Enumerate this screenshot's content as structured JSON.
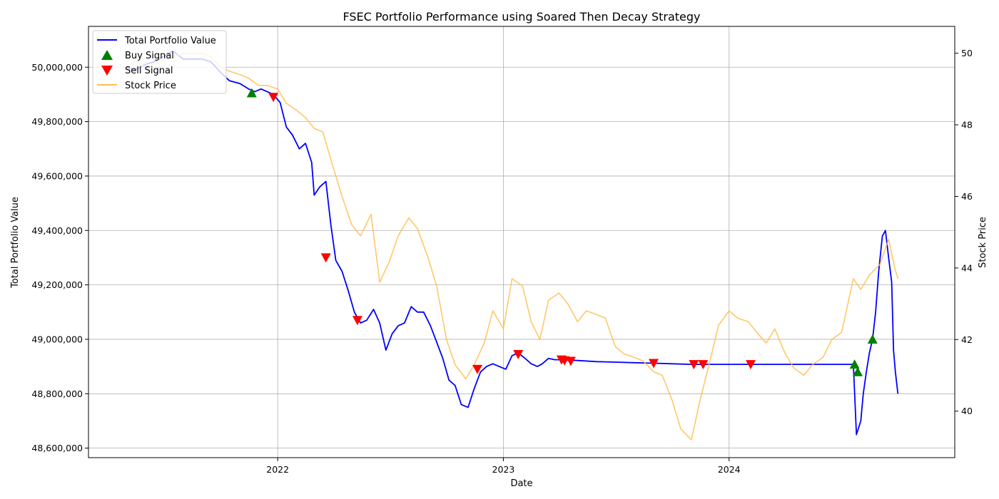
{
  "chart_data": {
    "type": "line",
    "title": "FSEC Portfolio Performance using Soared Then Decay Strategy",
    "xlabel": "Date",
    "ylabel_left": "Total Portfolio Value",
    "ylabel_right": "Stock Price",
    "x_ticks": [
      {
        "date": "2022-01-01",
        "label": "2022"
      },
      {
        "date": "2023-01-01",
        "label": "2023"
      },
      {
        "date": "2024-01-01",
        "label": "2024"
      }
    ],
    "xlim": [
      "2021-03-01",
      "2024-12-31"
    ],
    "y_left_ticks": [
      {
        "value": 48600000,
        "label": "48,600,000"
      },
      {
        "value": 48800000,
        "label": "48,800,000"
      },
      {
        "value": 49000000,
        "label": "49,000,000"
      },
      {
        "value": 49200000,
        "label": "49,200,000"
      },
      {
        "value": 49400000,
        "label": "49,400,000"
      },
      {
        "value": 49600000,
        "label": "49,600,000"
      },
      {
        "value": 49800000,
        "label": "49,800,000"
      },
      {
        "value": 50000000,
        "label": "50,000,000"
      }
    ],
    "ylim_left": [
      48565000,
      50150000
    ],
    "y_right_ticks": [
      {
        "value": 40,
        "label": "40"
      },
      {
        "value": 42,
        "label": "42"
      },
      {
        "value": 44,
        "label": "44"
      },
      {
        "value": 46,
        "label": "46"
      },
      {
        "value": 48,
        "label": "48"
      },
      {
        "value": 50,
        "label": "50"
      }
    ],
    "ylim_right": [
      38.7,
      50.75
    ],
    "grid": true,
    "legend_position": "top-left",
    "series": [
      {
        "name": "Total Portfolio Value",
        "axis": "left",
        "color": "#0000ff",
        "points": [
          [
            "2021-05-01",
            50000000
          ],
          [
            "2021-05-15",
            49990000
          ],
          [
            "2021-06-01",
            50010000
          ],
          [
            "2021-06-15",
            50020000
          ],
          [
            "2021-07-01",
            50040000
          ],
          [
            "2021-07-15",
            50060000
          ],
          [
            "2021-08-01",
            50030000
          ],
          [
            "2021-08-15",
            50030000
          ],
          [
            "2021-09-01",
            50030000
          ],
          [
            "2021-09-15",
            50020000
          ],
          [
            "2021-10-01",
            49980000
          ],
          [
            "2021-10-15",
            49950000
          ],
          [
            "2021-11-01",
            49940000
          ],
          [
            "2021-11-15",
            49920000
          ],
          [
            "2021-11-25",
            49910000
          ],
          [
            "2021-12-05",
            49920000
          ],
          [
            "2021-12-15",
            49910000
          ],
          [
            "2021-12-25",
            49900000
          ],
          [
            "2022-01-05",
            49870000
          ],
          [
            "2022-01-15",
            49780000
          ],
          [
            "2022-01-25",
            49750000
          ],
          [
            "2022-02-05",
            49700000
          ],
          [
            "2022-02-15",
            49720000
          ],
          [
            "2022-02-25",
            49650000
          ],
          [
            "2022-03-01",
            49530000
          ],
          [
            "2022-03-10",
            49560000
          ],
          [
            "2022-03-20",
            49580000
          ],
          [
            "2022-03-28",
            49420000
          ],
          [
            "2022-04-05",
            49290000
          ],
          [
            "2022-04-15",
            49250000
          ],
          [
            "2022-04-25",
            49180000
          ],
          [
            "2022-05-05",
            49100000
          ],
          [
            "2022-05-15",
            49060000
          ],
          [
            "2022-05-25",
            49070000
          ],
          [
            "2022-06-05",
            49110000
          ],
          [
            "2022-06-15",
            49060000
          ],
          [
            "2022-06-25",
            48960000
          ],
          [
            "2022-07-05",
            49020000
          ],
          [
            "2022-07-15",
            49050000
          ],
          [
            "2022-07-25",
            49060000
          ],
          [
            "2022-08-05",
            49120000
          ],
          [
            "2022-08-15",
            49100000
          ],
          [
            "2022-08-25",
            49100000
          ],
          [
            "2022-09-05",
            49050000
          ],
          [
            "2022-09-15",
            48990000
          ],
          [
            "2022-09-25",
            48930000
          ],
          [
            "2022-10-05",
            48850000
          ],
          [
            "2022-10-15",
            48830000
          ],
          [
            "2022-10-25",
            48760000
          ],
          [
            "2022-11-05",
            48750000
          ],
          [
            "2022-11-15",
            48820000
          ],
          [
            "2022-11-25",
            48880000
          ],
          [
            "2022-12-05",
            48900000
          ],
          [
            "2022-12-15",
            48910000
          ],
          [
            "2022-12-25",
            48900000
          ],
          [
            "2023-01-05",
            48890000
          ],
          [
            "2023-01-15",
            48940000
          ],
          [
            "2023-01-25",
            48950000
          ],
          [
            "2023-02-05",
            48930000
          ],
          [
            "2023-02-15",
            48910000
          ],
          [
            "2023-02-25",
            48900000
          ],
          [
            "2023-03-05",
            48910000
          ],
          [
            "2023-03-15",
            48930000
          ],
          [
            "2023-03-25",
            48925000
          ],
          [
            "2023-04-05",
            48925000
          ],
          [
            "2023-05-01",
            48922000
          ],
          [
            "2023-06-01",
            48918000
          ],
          [
            "2023-07-01",
            48916000
          ],
          [
            "2023-08-01",
            48914000
          ],
          [
            "2023-09-01",
            48912000
          ],
          [
            "2023-10-01",
            48910000
          ],
          [
            "2023-11-01",
            48908000
          ],
          [
            "2023-12-01",
            48908000
          ],
          [
            "2024-02-01",
            48908000
          ],
          [
            "2024-04-01",
            48908000
          ],
          [
            "2024-06-01",
            48908000
          ],
          [
            "2024-07-20",
            48908000
          ],
          [
            "2024-07-25",
            48650000
          ],
          [
            "2024-08-01",
            48700000
          ],
          [
            "2024-08-05",
            48800000
          ],
          [
            "2024-08-10",
            48880000
          ],
          [
            "2024-08-15",
            48950000
          ],
          [
            "2024-08-20",
            49000000
          ],
          [
            "2024-08-25",
            49100000
          ],
          [
            "2024-08-30",
            49250000
          ],
          [
            "2024-09-05",
            49380000
          ],
          [
            "2024-09-10",
            49400000
          ],
          [
            "2024-09-15",
            49300000
          ],
          [
            "2024-09-20",
            49210000
          ],
          [
            "2024-09-23",
            48960000
          ],
          [
            "2024-09-26",
            48880000
          ],
          [
            "2024-09-30",
            48800000
          ]
        ]
      },
      {
        "name": "Stock Price",
        "axis": "right",
        "color": "#ffbe4d",
        "points": [
          [
            "2021-05-01",
            49.6
          ],
          [
            "2021-05-15",
            49.8
          ],
          [
            "2021-06-01",
            49.6
          ],
          [
            "2021-06-15",
            49.7
          ],
          [
            "2021-07-01",
            49.8
          ],
          [
            "2021-07-15",
            49.9
          ],
          [
            "2021-08-01",
            50.0
          ],
          [
            "2021-08-15",
            50.0
          ],
          [
            "2021-09-01",
            50.0
          ],
          [
            "2021-09-15",
            49.9
          ],
          [
            "2021-10-01",
            49.6
          ],
          [
            "2021-10-15",
            49.5
          ],
          [
            "2021-11-01",
            49.4
          ],
          [
            "2021-11-15",
            49.3
          ],
          [
            "2021-12-01",
            49.1
          ],
          [
            "2021-12-15",
            49.1
          ],
          [
            "2022-01-01",
            49.0
          ],
          [
            "2022-01-15",
            48.6
          ],
          [
            "2022-02-01",
            48.4
          ],
          [
            "2022-02-15",
            48.2
          ],
          [
            "2022-03-01",
            47.9
          ],
          [
            "2022-03-15",
            47.8
          ],
          [
            "2022-04-01",
            46.8
          ],
          [
            "2022-04-15",
            46.0
          ],
          [
            "2022-05-01",
            45.2
          ],
          [
            "2022-05-15",
            44.9
          ],
          [
            "2022-06-01",
            45.5
          ],
          [
            "2022-06-15",
            43.6
          ],
          [
            "2022-07-01",
            44.2
          ],
          [
            "2022-07-15",
            44.9
          ],
          [
            "2022-08-01",
            45.4
          ],
          [
            "2022-08-15",
            45.1
          ],
          [
            "2022-09-01",
            44.3
          ],
          [
            "2022-09-15",
            43.5
          ],
          [
            "2022-10-01",
            42.0
          ],
          [
            "2022-10-15",
            41.3
          ],
          [
            "2022-11-01",
            40.9
          ],
          [
            "2022-11-15",
            41.3
          ],
          [
            "2022-12-01",
            41.9
          ],
          [
            "2022-12-15",
            42.8
          ],
          [
            "2023-01-01",
            42.3
          ],
          [
            "2023-01-15",
            43.7
          ],
          [
            "2023-02-01",
            43.5
          ],
          [
            "2023-02-15",
            42.5
          ],
          [
            "2023-03-01",
            42.0
          ],
          [
            "2023-03-15",
            43.1
          ],
          [
            "2023-04-01",
            43.3
          ],
          [
            "2023-04-15",
            43.0
          ],
          [
            "2023-05-01",
            42.5
          ],
          [
            "2023-05-15",
            42.8
          ],
          [
            "2023-06-01",
            42.7
          ],
          [
            "2023-06-15",
            42.6
          ],
          [
            "2023-07-01",
            41.8
          ],
          [
            "2023-07-15",
            41.6
          ],
          [
            "2023-08-01",
            41.5
          ],
          [
            "2023-08-15",
            41.4
          ],
          [
            "2023-09-01",
            41.1
          ],
          [
            "2023-09-15",
            41.0
          ],
          [
            "2023-10-01",
            40.3
          ],
          [
            "2023-10-15",
            39.5
          ],
          [
            "2023-11-01",
            39.2
          ],
          [
            "2023-11-15",
            40.3
          ],
          [
            "2023-12-01",
            41.4
          ],
          [
            "2023-12-15",
            42.4
          ],
          [
            "2024-01-01",
            42.8
          ],
          [
            "2024-01-15",
            42.6
          ],
          [
            "2024-02-01",
            42.5
          ],
          [
            "2024-02-15",
            42.2
          ],
          [
            "2024-03-01",
            41.9
          ],
          [
            "2024-03-15",
            42.3
          ],
          [
            "2024-04-01",
            41.6
          ],
          [
            "2024-04-15",
            41.2
          ],
          [
            "2024-05-01",
            41.0
          ],
          [
            "2024-05-15",
            41.3
          ],
          [
            "2024-06-01",
            41.5
          ],
          [
            "2024-06-15",
            42.0
          ],
          [
            "2024-07-01",
            42.2
          ],
          [
            "2024-07-20",
            43.7
          ],
          [
            "2024-08-01",
            43.4
          ],
          [
            "2024-08-15",
            43.8
          ],
          [
            "2024-09-01",
            44.1
          ],
          [
            "2024-09-15",
            44.8
          ],
          [
            "2024-09-25",
            44.0
          ],
          [
            "2024-09-30",
            43.7
          ]
        ]
      }
    ],
    "signals": [
      {
        "name": "Buy Signal",
        "color": "#008000",
        "marker": "triangle-up",
        "axis": "left",
        "points": [
          [
            "2021-11-20",
            49905000
          ],
          [
            "2024-07-22",
            48908000
          ],
          [
            "2024-07-27",
            48880000
          ],
          [
            "2024-08-20",
            49000000
          ]
        ]
      },
      {
        "name": "Sell Signal",
        "color": "#ff0000",
        "marker": "triangle-down",
        "axis": "left",
        "points": [
          [
            "2021-12-25",
            49890000
          ],
          [
            "2022-03-20",
            49300000
          ],
          [
            "2022-05-10",
            49070000
          ],
          [
            "2022-11-20",
            48890000
          ],
          [
            "2023-01-25",
            48945000
          ],
          [
            "2023-04-05",
            48925000
          ],
          [
            "2023-04-10",
            48922000
          ],
          [
            "2023-04-20",
            48920000
          ],
          [
            "2023-09-01",
            48912000
          ],
          [
            "2023-11-05",
            48908000
          ],
          [
            "2023-11-20",
            48908000
          ],
          [
            "2024-02-05",
            48908000
          ]
        ]
      }
    ]
  }
}
